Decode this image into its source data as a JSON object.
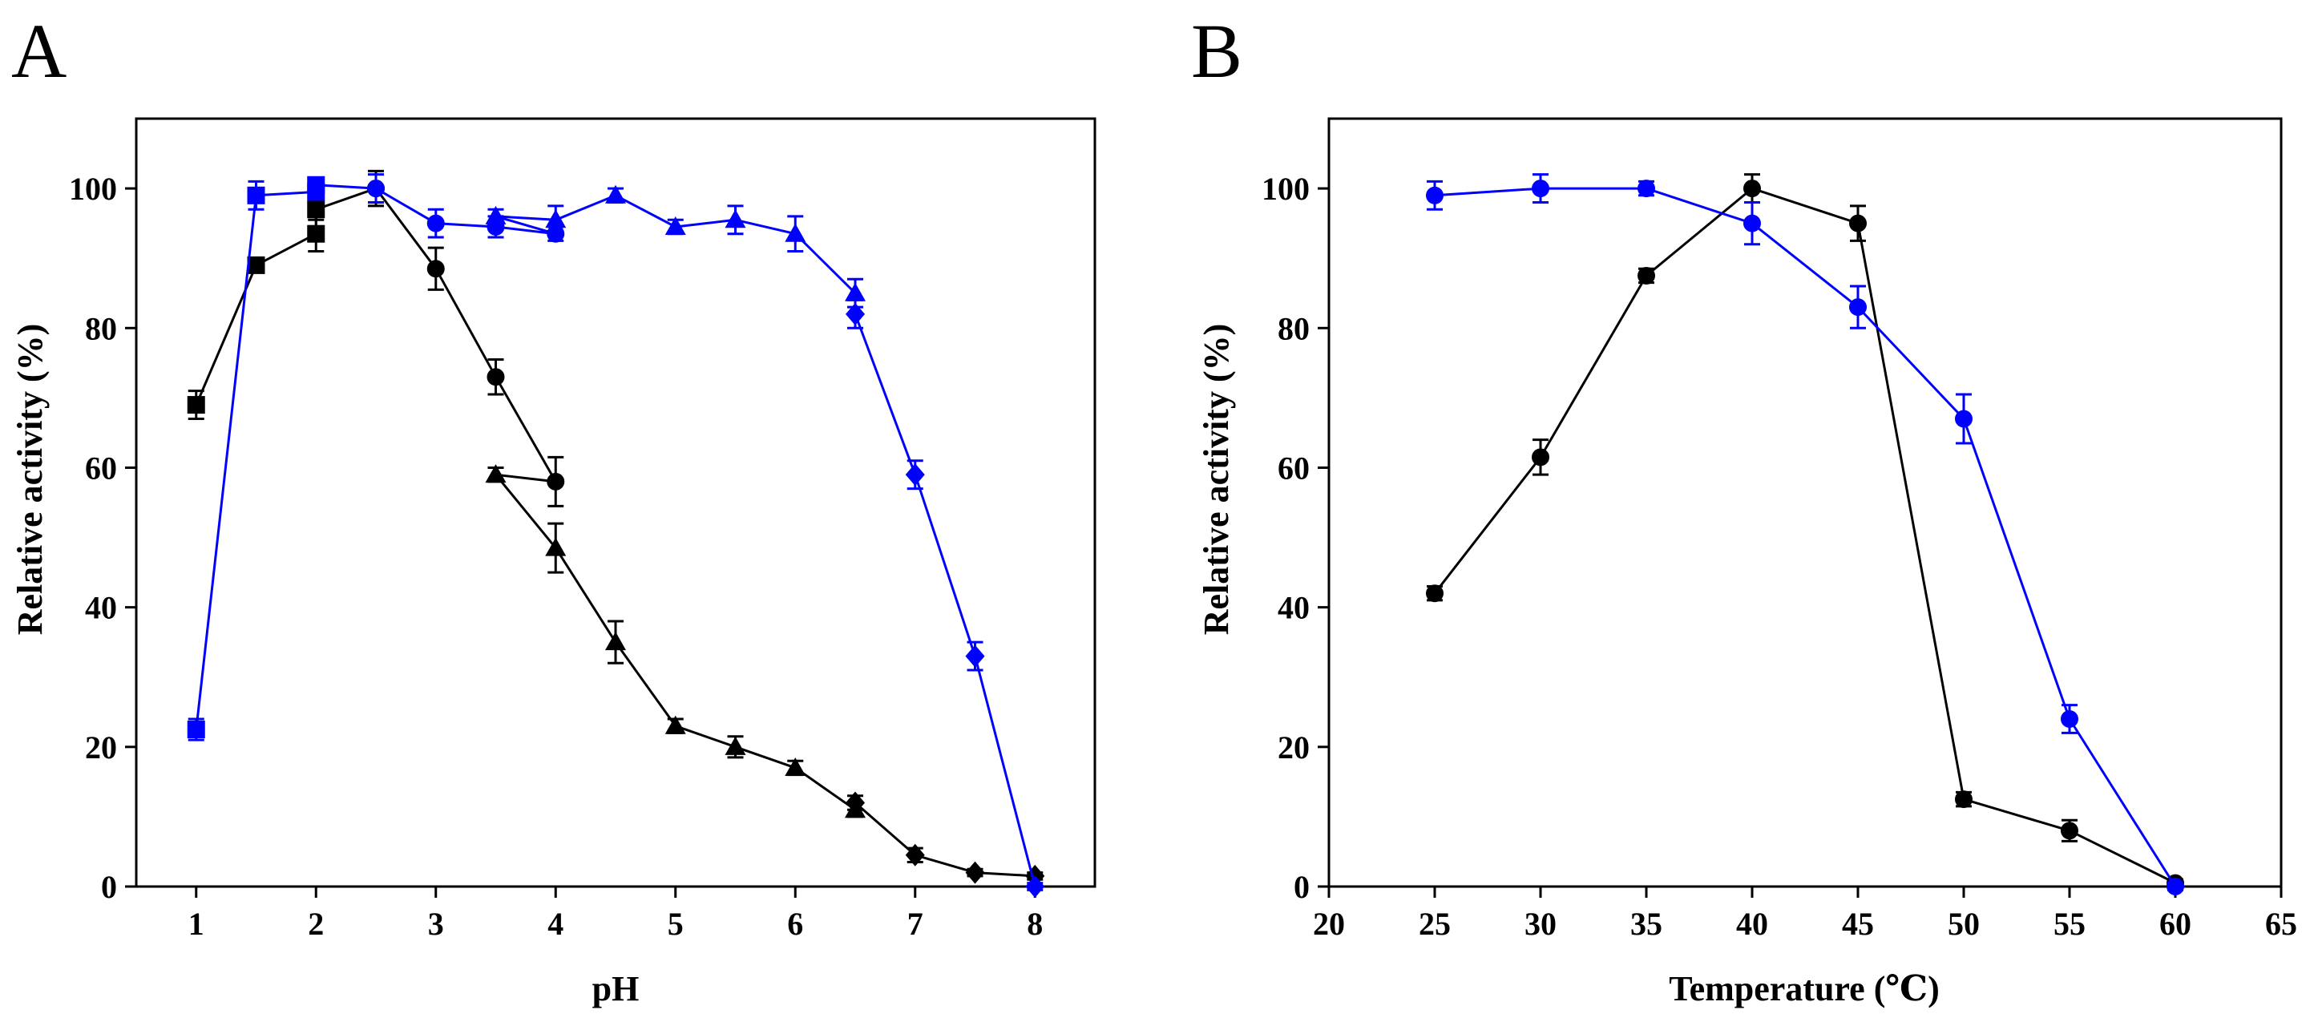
{
  "chart_data": [
    {
      "panel": "A",
      "type": "line",
      "xlabel": "pH",
      "ylabel": "Relative activity (%)",
      "xlim": [
        0.5,
        8.5
      ],
      "ylim": [
        0,
        110
      ],
      "xticks": [
        1,
        2,
        3,
        4,
        5,
        6,
        7,
        8
      ],
      "yticks": [
        0,
        20,
        40,
        60,
        80,
        100
      ],
      "series": [
        {
          "name": "black",
          "color": "#000000",
          "points": [
            {
              "x": 1.0,
              "y": 69,
              "err": 2,
              "marker": "square"
            },
            {
              "x": 1.5,
              "y": 89,
              "err": 1,
              "marker": "square"
            },
            {
              "x": 2.0,
              "y": 93.5,
              "err": 2.5,
              "marker": "square"
            },
            {
              "x": 2.0,
              "y": 97,
              "err": 1.5,
              "marker": "square"
            },
            {
              "x": 2.5,
              "y": 100,
              "err": 2.5,
              "marker": "circle"
            },
            {
              "x": 3.0,
              "y": 88.5,
              "err": 3,
              "marker": "circle"
            },
            {
              "x": 3.5,
              "y": 73,
              "err": 2.5,
              "marker": "circle"
            },
            {
              "x": 4.0,
              "y": 58,
              "err": 3.5,
              "marker": "circle"
            },
            {
              "x": 3.5,
              "y": 59,
              "err": 1,
              "marker": "triangle"
            },
            {
              "x": 4.0,
              "y": 48.5,
              "err": 3.5,
              "marker": "triangle"
            },
            {
              "x": 4.5,
              "y": 35,
              "err": 3,
              "marker": "triangle"
            },
            {
              "x": 5.0,
              "y": 23,
              "err": 1,
              "marker": "triangle"
            },
            {
              "x": 5.5,
              "y": 20,
              "err": 1.5,
              "marker": "triangle"
            },
            {
              "x": 6.0,
              "y": 17,
              "err": 1,
              "marker": "triangle"
            },
            {
              "x": 6.5,
              "y": 11,
              "err": 1,
              "marker": "triangle"
            },
            {
              "x": 6.5,
              "y": 12,
              "err": 1,
              "marker": "diamond"
            },
            {
              "x": 7.0,
              "y": 4.5,
              "err": 1,
              "marker": "diamond"
            },
            {
              "x": 7.5,
              "y": 2,
              "err": 0.5,
              "marker": "diamond"
            },
            {
              "x": 8.0,
              "y": 1.5,
              "err": 0.5,
              "marker": "diamond"
            }
          ]
        },
        {
          "name": "blue",
          "color": "#0000ff",
          "points": [
            {
              "x": 1.0,
              "y": 22.5,
              "err": 1.5,
              "marker": "square"
            },
            {
              "x": 1.5,
              "y": 99,
              "err": 2,
              "marker": "square"
            },
            {
              "x": 2.0,
              "y": 99.5,
              "err": 1,
              "marker": "square"
            },
            {
              "x": 2.0,
              "y": 100.5,
              "err": 1,
              "marker": "square"
            },
            {
              "x": 2.5,
              "y": 100,
              "err": 2,
              "marker": "circle"
            },
            {
              "x": 3.0,
              "y": 95,
              "err": 2,
              "marker": "circle"
            },
            {
              "x": 3.5,
              "y": 94.5,
              "err": 1.5,
              "marker": "circle"
            },
            {
              "x": 4.0,
              "y": 93.5,
              "err": 1,
              "marker": "circle"
            },
            {
              "x": 3.5,
              "y": 96,
              "err": 1,
              "marker": "triangle"
            },
            {
              "x": 4.0,
              "y": 95.5,
              "err": 2,
              "marker": "triangle"
            },
            {
              "x": 4.5,
              "y": 99,
              "err": 1,
              "marker": "triangle"
            },
            {
              "x": 5.0,
              "y": 94.5,
              "err": 1,
              "marker": "triangle"
            },
            {
              "x": 5.5,
              "y": 95.5,
              "err": 2,
              "marker": "triangle"
            },
            {
              "x": 6.0,
              "y": 93.5,
              "err": 2.5,
              "marker": "triangle"
            },
            {
              "x": 6.5,
              "y": 85,
              "err": 2,
              "marker": "triangle"
            },
            {
              "x": 6.5,
              "y": 82,
              "err": 2,
              "marker": "diamond"
            },
            {
              "x": 7.0,
              "y": 59,
              "err": 2,
              "marker": "diamond"
            },
            {
              "x": 7.5,
              "y": 33,
              "err": 2,
              "marker": "diamond"
            },
            {
              "x": 8.0,
              "y": 0,
              "err": 0.5,
              "marker": "diamond"
            }
          ]
        }
      ]
    },
    {
      "panel": "B",
      "type": "line",
      "xlabel": "Temperature (℃)",
      "ylabel": "Relative activity (%)",
      "xlim": [
        20,
        65
      ],
      "ylim": [
        0,
        110
      ],
      "xticks": [
        20,
        25,
        30,
        35,
        40,
        45,
        50,
        55,
        60,
        65
      ],
      "yticks": [
        0,
        20,
        40,
        60,
        80,
        100
      ],
      "series": [
        {
          "name": "black",
          "color": "#000000",
          "points": [
            {
              "x": 25,
              "y": 42,
              "err": 1,
              "marker": "circle"
            },
            {
              "x": 30,
              "y": 61.5,
              "err": 2.5,
              "marker": "circle"
            },
            {
              "x": 35,
              "y": 87.5,
              "err": 1,
              "marker": "circle"
            },
            {
              "x": 40,
              "y": 100,
              "err": 2,
              "marker": "circle"
            },
            {
              "x": 45,
              "y": 95,
              "err": 2.5,
              "marker": "circle"
            },
            {
              "x": 50,
              "y": 12.5,
              "err": 1,
              "marker": "circle"
            },
            {
              "x": 55,
              "y": 8,
              "err": 1.5,
              "marker": "circle"
            },
            {
              "x": 60,
              "y": 0.5,
              "err": 0.5,
              "marker": "circle"
            }
          ]
        },
        {
          "name": "blue",
          "color": "#0000ff",
          "points": [
            {
              "x": 25,
              "y": 99,
              "err": 2,
              "marker": "circle"
            },
            {
              "x": 30,
              "y": 100,
              "err": 2,
              "marker": "circle"
            },
            {
              "x": 35,
              "y": 100,
              "err": 1,
              "marker": "circle"
            },
            {
              "x": 40,
              "y": 95,
              "err": 3,
              "marker": "circle"
            },
            {
              "x": 45,
              "y": 83,
              "err": 3,
              "marker": "circle"
            },
            {
              "x": 50,
              "y": 67,
              "err": 3.5,
              "marker": "circle"
            },
            {
              "x": 55,
              "y": 24,
              "err": 2,
              "marker": "circle"
            },
            {
              "x": 60,
              "y": 0,
              "err": 0.5,
              "marker": "circle"
            }
          ]
        }
      ]
    }
  ]
}
